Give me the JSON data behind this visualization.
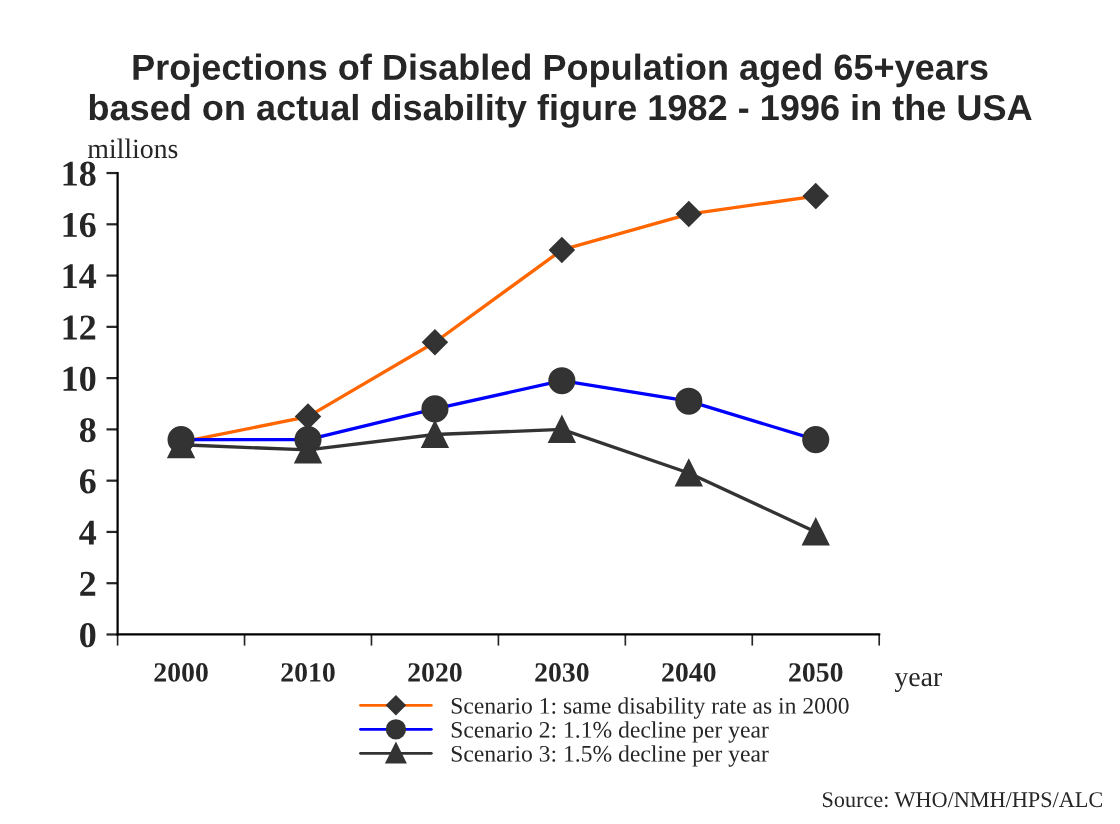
{
  "chart_data": {
    "type": "line",
    "title": "Projections of Disabled Population aged 65+years\nbased on actual disability figure 1982 - 1996 in the USA",
    "ylabel": "millions",
    "xlabel": "year",
    "categories": [
      "2000",
      "2010",
      "2020",
      "2030",
      "2040",
      "2050"
    ],
    "series": [
      {
        "name": "Scenario 1: same disability rate as in 2000",
        "color": "#ff6600",
        "marker": "diamond",
        "values": [
          7.5,
          8.5,
          11.4,
          15.0,
          16.4,
          17.1
        ]
      },
      {
        "name": "Scenario 2: 1.1% decline per year",
        "color": "#0000ff",
        "marker": "circle",
        "values": [
          7.6,
          7.6,
          8.8,
          9.9,
          9.1,
          7.6
        ]
      },
      {
        "name": "Scenario 3: 1.5% decline per year",
        "color": "#333333",
        "marker": "triangle",
        "values": [
          7.4,
          7.2,
          7.8,
          8.0,
          6.3,
          4.0
        ]
      }
    ],
    "ylim": [
      0,
      18
    ],
    "yticks": [
      0,
      2,
      4,
      6,
      8,
      10,
      12,
      14,
      16,
      18
    ],
    "grid": false,
    "legend": "bottom",
    "annotations": [
      "Source: WHO/NMH/HPS/ALC"
    ]
  }
}
